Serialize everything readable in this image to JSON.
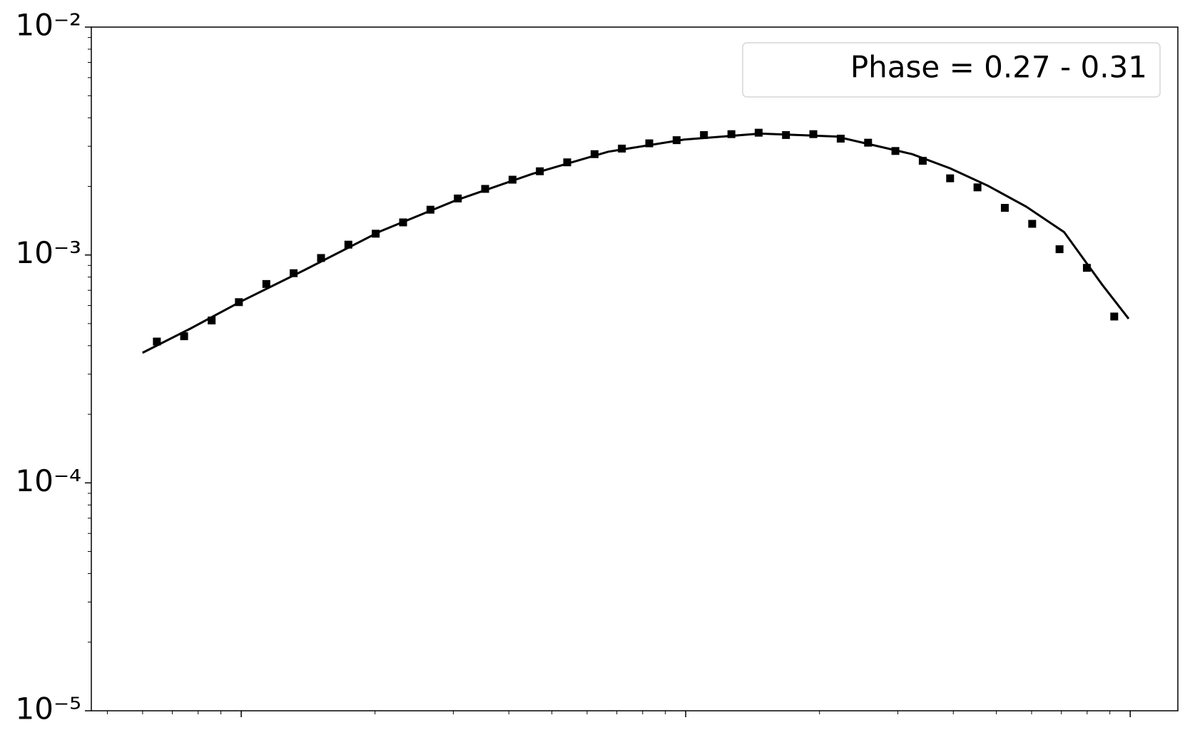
{
  "chart_data": {
    "type": "scatter",
    "annotation": "Phase = 0.27 - 0.31",
    "xscale": "log",
    "yscale": "log",
    "xlim": [
      0.46,
      128
    ],
    "xticks": [
      1,
      10,
      100
    ],
    "ylim": [
      1e-05,
      0.01
    ],
    "yticks": [
      {
        "value": 1e-05,
        "label": "10⁻⁵"
      },
      {
        "value": 0.0001,
        "label": "10⁻⁴"
      },
      {
        "value": 0.001,
        "label": "10⁻³"
      },
      {
        "value": 0.01,
        "label": "10⁻²"
      }
    ],
    "series": [
      {
        "kind": "points",
        "color": "#000000",
        "x": [
          0.646,
          0.744,
          0.858,
          0.988,
          1.139,
          1.312,
          1.512,
          1.742,
          2.007,
          2.313,
          2.665,
          3.071,
          3.538,
          4.077,
          4.697,
          5.412,
          6.236,
          7.185,
          8.279,
          9.539,
          10.99,
          12.67,
          14.59,
          16.81,
          19.37,
          22.32,
          25.72,
          29.63,
          34.14,
          39.34,
          45.33,
          52.23,
          60.18,
          69.34,
          79.89,
          92.06
        ],
        "values": [
          0.000417,
          0.00044,
          0.000516,
          0.000621,
          0.000746,
          0.000832,
          0.00097,
          0.00111,
          0.00124,
          0.00139,
          0.00158,
          0.00177,
          0.00195,
          0.00214,
          0.00233,
          0.00255,
          0.00277,
          0.00293,
          0.00309,
          0.00319,
          0.00336,
          0.00339,
          0.00344,
          0.00336,
          0.00339,
          0.00324,
          0.00311,
          0.00286,
          0.00259,
          0.00217,
          0.00198,
          0.00161,
          0.00137,
          0.00106,
          0.000878,
          0.000537
        ]
      },
      {
        "kind": "line",
        "color": "#000000",
        "x": [
          0.5995,
          0.768,
          1,
          1.387,
          2.055,
          3.047,
          4.515,
          6.692,
          9.92,
          14.71,
          21.8,
          32.31,
          39.34,
          47.9,
          58.33,
          71.02,
          86.47,
          99.2
        ],
        "values": [
          0.000372,
          0.000475,
          0.000626,
          0.000858,
          0.00127,
          0.00174,
          0.00227,
          0.00284,
          0.00321,
          0.00341,
          0.00331,
          0.00277,
          0.0024,
          0.00201,
          0.00163,
          0.00126,
          0.000741,
          0.000525
        ]
      }
    ]
  }
}
